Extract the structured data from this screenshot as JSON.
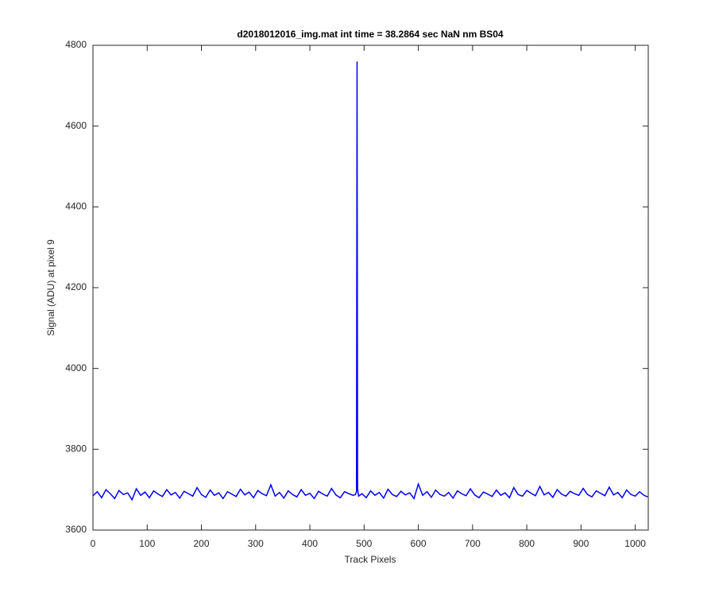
{
  "chart_data": {
    "type": "line",
    "title": "d2018012016_img.mat int time = 38.2864 sec  NaN nm BS04",
    "x_label": "Track Pixels",
    "y_label": "Signal (ADU) at pixel 9",
    "xlim": [
      0,
      1024
    ],
    "ylim": [
      3600,
      4800
    ],
    "xticks": [
      0,
      100,
      200,
      300,
      400,
      500,
      600,
      700,
      800,
      900,
      1000
    ],
    "yticks": [
      3600,
      3800,
      4000,
      4200,
      4400,
      4600,
      4800
    ],
    "x": [
      0,
      8,
      16,
      24,
      32,
      40,
      48,
      56,
      64,
      72,
      80,
      88,
      96,
      104,
      112,
      120,
      128,
      136,
      144,
      152,
      160,
      168,
      176,
      184,
      192,
      200,
      208,
      216,
      224,
      232,
      240,
      248,
      256,
      264,
      272,
      280,
      288,
      296,
      304,
      312,
      320,
      328,
      336,
      344,
      352,
      360,
      368,
      376,
      384,
      392,
      400,
      408,
      416,
      424,
      432,
      440,
      448,
      456,
      464,
      472,
      480,
      484,
      486,
      487,
      488,
      490,
      496,
      504,
      512,
      520,
      528,
      536,
      544,
      552,
      560,
      568,
      576,
      584,
      592,
      600,
      608,
      616,
      624,
      632,
      640,
      648,
      656,
      664,
      672,
      680,
      688,
      696,
      704,
      712,
      720,
      728,
      736,
      744,
      752,
      760,
      768,
      776,
      784,
      792,
      800,
      808,
      816,
      824,
      832,
      840,
      848,
      856,
      864,
      872,
      880,
      888,
      896,
      904,
      912,
      920,
      928,
      936,
      944,
      952,
      960,
      968,
      976,
      984,
      992,
      1000,
      1008,
      1016,
      1023
    ],
    "series": [
      {
        "color": "#0000ff",
        "values": [
          3685,
          3695,
          3680,
          3700,
          3690,
          3678,
          3698,
          3688,
          3692,
          3675,
          3702,
          3686,
          3694,
          3680,
          3697,
          3689,
          3683,
          3700,
          3687,
          3693,
          3679,
          3696,
          3690,
          3684,
          3705,
          3688,
          3681,
          3699,
          3686,
          3692,
          3678,
          3695,
          3689,
          3683,
          3701,
          3687,
          3694,
          3680,
          3698,
          3690,
          3685,
          3712,
          3684,
          3693,
          3679,
          3697,
          3688,
          3682,
          3700,
          3686,
          3691,
          3678,
          3696,
          3689,
          3684,
          3703,
          3687,
          3680,
          3695,
          3690,
          3686,
          3688,
          3695,
          4760,
          3700,
          3684,
          3690,
          3680,
          3697,
          3686,
          3693,
          3679,
          3701,
          3688,
          3683,
          3696,
          3687,
          3692,
          3678,
          3714,
          3686,
          3695,
          3681,
          3699,
          3688,
          3684,
          3693,
          3679,
          3697,
          3690,
          3685,
          3702,
          3687,
          3680,
          3694,
          3689,
          3683,
          3699,
          3686,
          3692,
          3680,
          3705,
          3688,
          3684,
          3698,
          3691,
          3685,
          3708,
          3687,
          3693,
          3681,
          3700,
          3689,
          3684,
          3696,
          3690,
          3686,
          3703,
          3688,
          3682,
          3697,
          3691,
          3685,
          3706,
          3687,
          3693,
          3680,
          3699,
          3688,
          3684,
          3695,
          3686,
          3682
        ]
      }
    ]
  }
}
